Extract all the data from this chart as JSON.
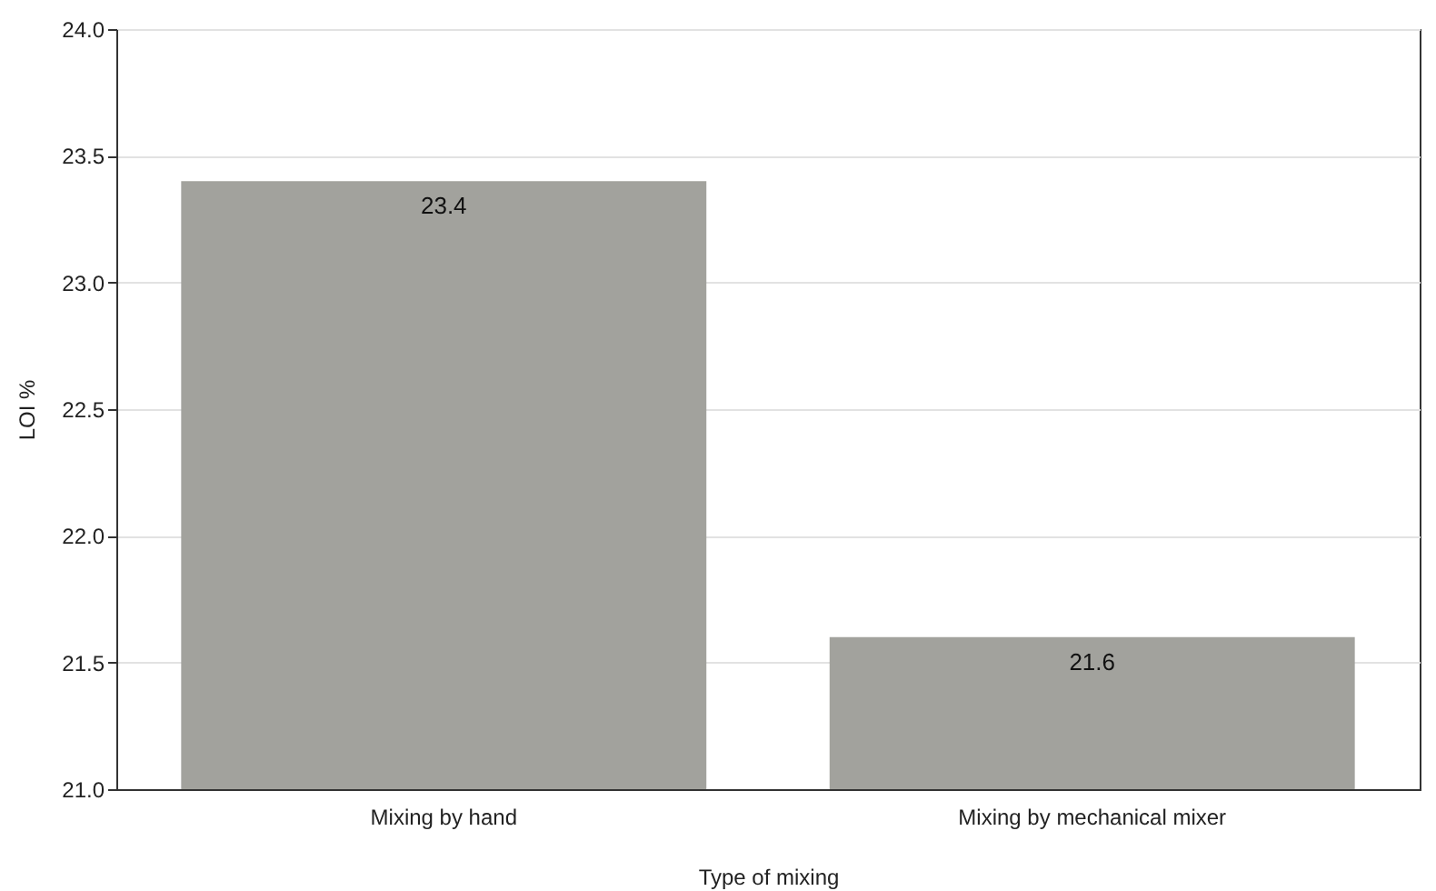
{
  "chart_data": {
    "type": "bar",
    "xlabel": "Type of mixing",
    "ylabel": "LOI %",
    "categories": [
      "Mixing by hand",
      "Mixing by mechanical mixer"
    ],
    "values": [
      23.4,
      21.6
    ],
    "color": "#a2a29d",
    "ylim": [
      21,
      24
    ],
    "yticks": [
      {
        "value": 21,
        "label": "21.0"
      },
      {
        "value": 21.5,
        "label": "21.5"
      },
      {
        "value": 22,
        "label": "22.0"
      },
      {
        "value": 22.5,
        "label": "22.5"
      },
      {
        "value": 23,
        "label": "23.0"
      },
      {
        "value": 23.5,
        "label": "23.5"
      },
      {
        "value": 24,
        "label": "24.0"
      }
    ],
    "grid": "y",
    "data_labels": true
  }
}
